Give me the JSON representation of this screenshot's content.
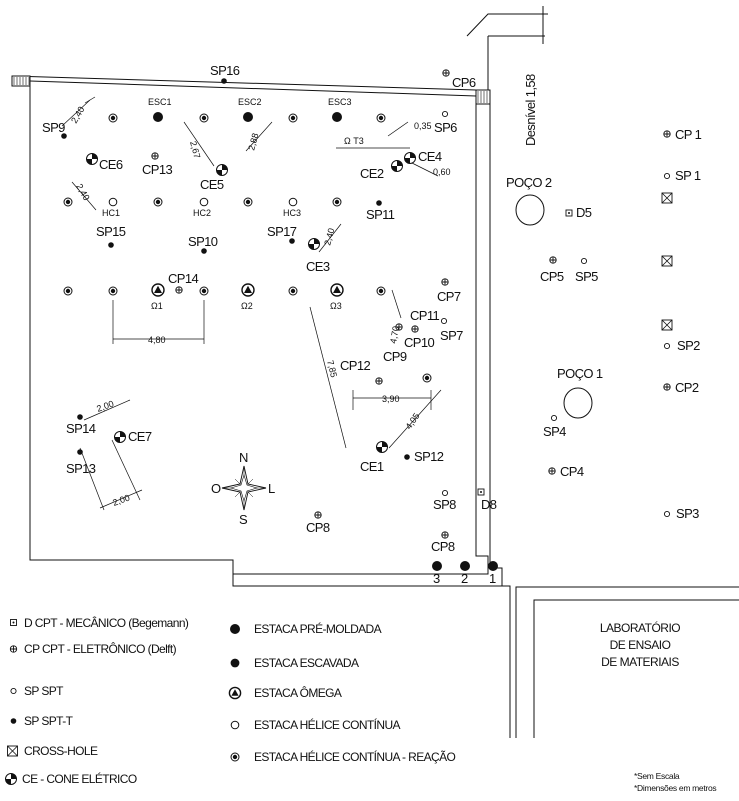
{
  "map_labels": {
    "sp16": "SP16",
    "cp6": "CP6",
    "desnivel": "Desnível 1,58",
    "sp9": "SP9",
    "esc1": "ESC1",
    "esc2": "ESC2",
    "esc3": "ESC3",
    "sp6": "SP6",
    "cp1": "CP 1",
    "sp1": "SP 1",
    "ot3": "Ω T3",
    "ce4": "CE4",
    "ce2": "CE2",
    "ce6": "CE6",
    "cp13": "CP13",
    "ce5": "CE5",
    "poco2": "POÇO 2",
    "d5": "D5",
    "hc1": "HC1",
    "hc2": "HC2",
    "hc3": "HC3",
    "sp11": "SP11",
    "sp15": "SP15",
    "sp10": "SP10",
    "sp17": "SP17",
    "ce3": "CE3",
    "cp5": "CP5",
    "sp5": "SP5",
    "cp14": "CP14",
    "o1": "Ω1",
    "o2": "Ω2",
    "o3": "Ω3",
    "cp7": "CP7",
    "cp11": "CP11",
    "sp7": "SP7",
    "cp10": "CP10",
    "cp9": "CP9",
    "sp2": "SP2",
    "cp12": "CP12",
    "poco1": "POÇO 1",
    "cp2": "CP2",
    "sp14": "SP14",
    "ce7": "CE7",
    "sp4": "SP4",
    "ce1": "CE1",
    "sp12": "SP12",
    "sp13": "SP13",
    "cp4": "CP4",
    "n": "N",
    "o": "O",
    "l": "L",
    "s": "S",
    "sp8": "SP8",
    "d8": "D8",
    "cp8a": "CP8",
    "sp3": "SP3",
    "cp8b": "CP8",
    "r3": "3",
    "r2": "2",
    "r1": "1"
  },
  "dimensions": {
    "d240a": "2,40",
    "d240b": "2,40",
    "d267": "2,67",
    "d288": "2,88",
    "d035": "0,35",
    "d060": "0,60",
    "d240c": "2,40",
    "d480": "4,80",
    "d470": "4,70",
    "d785": "7,85",
    "d390": "3,90",
    "d405": "4,05",
    "d200a": "2,00",
    "d200b": "2,00"
  },
  "legend": {
    "d": "D  CPT - MECÂNICO (Begemann)",
    "cp": "CP  CPT - ELETRÔNICO (Delft)",
    "sp": "SP  SPT",
    "spt": "SP  SPT-T",
    "crosshole": "CROSS-HOLE",
    "ce": "CE - CONE ELÉTRICO",
    "premoldada": "ESTACA PRÉ-MOLDADA",
    "escavada": "ESTACA ESCAVADA",
    "omega": "ESTACA ÔMEGA",
    "helice": "ESTACA HÉLICE CONTÍNUA",
    "helice_reacao": "ESTACA HÉLICE CONTÍNUA - REAÇÃO"
  },
  "lab": {
    "line1": "LABORATÓRIO",
    "line2": "DE ENSAIO",
    "line3": "DE MATERIAIS"
  },
  "notes": {
    "n1": "*Sem Escala",
    "n2": "*Dimensões em metros"
  }
}
